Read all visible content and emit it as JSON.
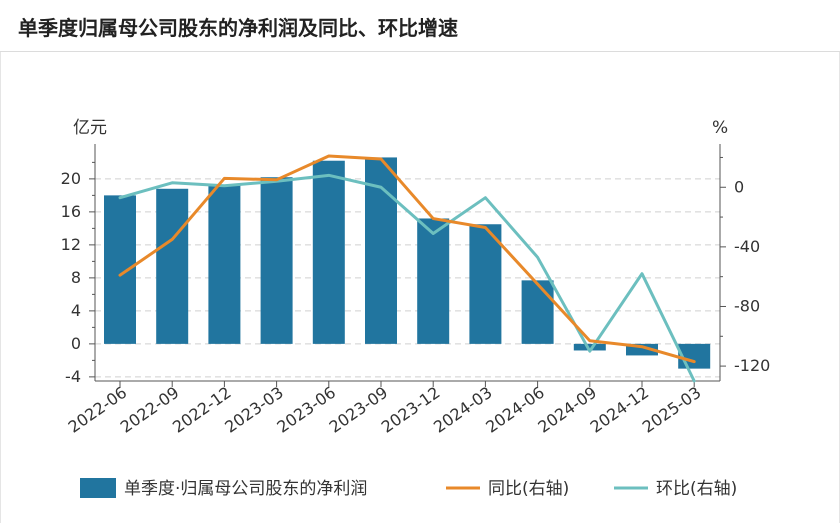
{
  "header": {
    "title": "单季度归属母公司股东的净利润及同比、环比增速"
  },
  "chart_data": {
    "type": "bar",
    "categories": [
      "2022-06",
      "2022-09",
      "2022-12",
      "2023-03",
      "2023-06",
      "2023-09",
      "2023-12",
      "2024-03",
      "2024-06",
      "2024-09",
      "2024-12",
      "2025-03"
    ],
    "y_left_unit": "亿元",
    "y_right_unit": "%",
    "y_left_ticks": [
      "20",
      "16",
      "12",
      "8",
      "4",
      "0",
      "-4"
    ],
    "y_right_ticks": [
      "0",
      "-40",
      "-80",
      "-120"
    ],
    "ylim_left": [
      -4.5,
      23.5
    ],
    "ylim_right": [
      -130,
      25
    ],
    "grid": true,
    "legend_position": "bottom",
    "series": [
      {
        "name": "单季度·归属母公司股东的净利润",
        "type": "bar",
        "axis": "left",
        "color": "#21759f",
        "values": [
          18.0,
          18.8,
          19.3,
          20.2,
          22.2,
          22.6,
          15.2,
          14.5,
          7.7,
          -0.8,
          -1.4,
          -3.0
        ]
      },
      {
        "name": "同比(右轴)",
        "type": "line",
        "axis": "right",
        "color": "#e8892a",
        "values": [
          -59,
          -35,
          6,
          5,
          21,
          19,
          -21,
          -27,
          -65,
          -103,
          -107,
          -117
        ]
      },
      {
        "name": "环比(右轴)",
        "type": "line",
        "axis": "right",
        "color": "#6cbfbf",
        "values": [
          -7,
          3,
          1,
          4,
          8,
          0,
          -31,
          -7,
          -47,
          -110,
          -58,
          -130
        ]
      }
    ]
  }
}
